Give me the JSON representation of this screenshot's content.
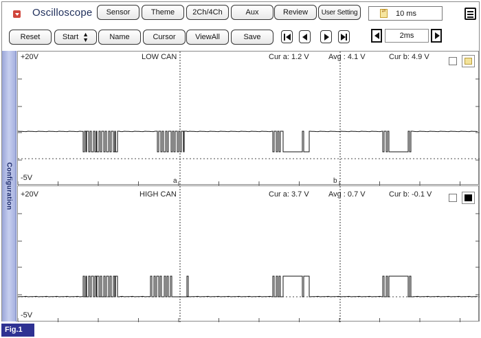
{
  "app": {
    "title": "Oscilloscope",
    "top_buttons": [
      "Sensor",
      "Theme",
      "2Ch/4Ch",
      "Aux",
      "Review",
      "User Setting"
    ],
    "time_per_div": "10 ms"
  },
  "toolbar": {
    "reset": "Reset",
    "start": "Start",
    "name": "Name",
    "cursor": "Cursor",
    "viewall": "ViewAll",
    "save": "Save",
    "step_value": "2ms"
  },
  "sidebar": {
    "configuration_label": "Configuration"
  },
  "channels": [
    {
      "name": "LOW CAN",
      "top_label": "+20V",
      "bottom_label": "-5V",
      "cur_a": "Cur a: 1.2 V",
      "avg": "Avg : 4.1 V",
      "cur_b": "Cur b: 4.9 V",
      "cursor_a_label": "a",
      "cursor_b_label": "b",
      "color_swatch": "#f3e39a",
      "waveform": "low_can"
    },
    {
      "name": "HIGH CAN",
      "top_label": "+20V",
      "bottom_label": "-5V",
      "cur_a": "Cur a: 3.7 V",
      "avg": "Avg : 0.7 V",
      "cur_b": "Cur b: -0.1 V",
      "color_swatch": "#000000",
      "waveform": "high_can"
    }
  ],
  "figure_label": "Fig.1"
}
